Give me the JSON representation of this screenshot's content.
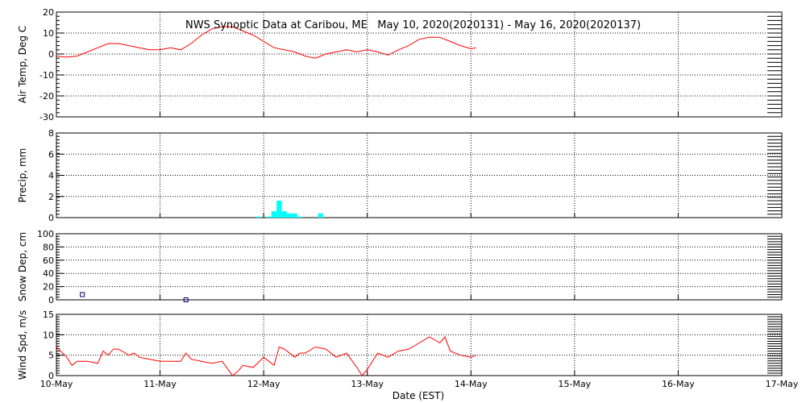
{
  "title": "NWS Synoptic Data at Caribou, ME   May 10, 2020(2020131) - May 16, 2020(2020137)",
  "xlabel": "Date (EST)",
  "colors": {
    "temp": "#ff0000",
    "precip": "#00ffff",
    "snow": "#000080",
    "wind": "#ff0000",
    "frame": "#000000"
  },
  "chart_data": [
    {
      "type": "line",
      "panel": "air-temp",
      "ylabel": "Air Temp, Deg C",
      "ylim": [
        -30,
        20
      ],
      "yticks": [
        "20",
        "10",
        "0",
        "-10",
        "-20",
        "-30"
      ],
      "grid": true,
      "x_units": "days since 10-May",
      "series": [
        {
          "x": [
            0.0,
            0.1,
            0.2,
            0.3,
            0.4,
            0.5,
            0.6,
            0.7,
            0.8,
            0.9,
            1.0,
            1.1,
            1.2,
            1.3,
            1.4,
            1.5,
            1.6,
            1.7,
            1.8,
            1.9,
            2.0,
            2.1,
            2.2,
            2.3,
            2.4,
            2.5,
            2.6,
            2.7,
            2.8,
            2.9,
            3.0,
            3.1,
            3.2,
            3.3,
            3.4,
            3.5,
            3.6,
            3.7,
            3.8,
            3.9,
            4.0,
            4.05
          ],
          "y": [
            -1,
            -1.5,
            -1,
            1,
            3,
            5,
            5,
            4,
            3,
            2,
            2,
            3,
            2,
            5,
            9,
            12,
            13,
            13,
            11,
            9,
            6,
            3,
            2,
            1,
            -1,
            -2,
            0,
            1,
            2,
            1,
            2,
            1,
            -0.5,
            2,
            4,
            7,
            8,
            8,
            6,
            4,
            2.5,
            3
          ]
        }
      ]
    },
    {
      "type": "bar",
      "panel": "precip",
      "ylabel": "Precip, mm",
      "ylim": [
        0,
        8
      ],
      "yticks": [
        "8",
        "6",
        "4",
        "2",
        "0"
      ],
      "grid": true,
      "x_units": "days since 10-May",
      "bar_width_days": 0.05,
      "series": [
        {
          "x": [
            1.95,
            2.05,
            2.1,
            2.15,
            2.2,
            2.25,
            2.3,
            2.35,
            2.55
          ],
          "values": [
            0.1,
            0.1,
            0.6,
            1.6,
            0.6,
            0.4,
            0.4,
            0.1,
            0.4
          ]
        }
      ]
    },
    {
      "type": "scatter",
      "panel": "snow-depth",
      "ylabel": "Snow Dep, cm",
      "ylim": [
        0,
        100
      ],
      "yticks": [
        "100",
        "80",
        "60",
        "40",
        "20",
        "0"
      ],
      "grid": true,
      "x_units": "days since 10-May",
      "series": [
        {
          "x": [
            0.25,
            1.25
          ],
          "y": [
            8,
            0
          ]
        }
      ]
    },
    {
      "type": "line",
      "panel": "wind-speed",
      "ylabel": "Wind Spd, m/s",
      "ylim": [
        0,
        15
      ],
      "yticks": [
        "15",
        "10",
        "5",
        "0"
      ],
      "grid": true,
      "x_units": "days since 10-May",
      "xticks": [
        "10-May",
        "11-May",
        "12-May",
        "13-May",
        "14-May",
        "15-May",
        "16-May",
        "17-May"
      ],
      "series": [
        {
          "x": [
            0.0,
            0.1,
            0.15,
            0.2,
            0.3,
            0.4,
            0.45,
            0.5,
            0.55,
            0.6,
            0.7,
            0.75,
            0.8,
            0.9,
            1.0,
            1.1,
            1.2,
            1.25,
            1.3,
            1.4,
            1.5,
            1.6,
            1.7,
            1.75,
            1.8,
            1.9,
            2.0,
            2.1,
            2.15,
            2.2,
            2.3,
            2.35,
            2.4,
            2.5,
            2.6,
            2.7,
            2.8,
            2.9,
            2.95,
            3.0,
            3.1,
            3.2,
            3.3,
            3.4,
            3.5,
            3.6,
            3.7,
            3.75,
            3.8,
            3.9,
            4.0,
            4.05
          ],
          "y": [
            7,
            4.5,
            2.5,
            3.5,
            3.5,
            3,
            6,
            5,
            6.5,
            6.5,
            5,
            5.5,
            4.5,
            4,
            3.5,
            3.5,
            3.5,
            5.5,
            4,
            3.5,
            3,
            3.5,
            0,
            1,
            2.5,
            2,
            4.5,
            2.5,
            7,
            6.5,
            4.5,
            5.5,
            5.5,
            7,
            6.5,
            4.5,
            5.5,
            2,
            0,
            1.5,
            5.5,
            4.5,
            6,
            6.5,
            8,
            9.5,
            8,
            9.5,
            6,
            5,
            4.5,
            5
          ]
        }
      ]
    }
  ]
}
